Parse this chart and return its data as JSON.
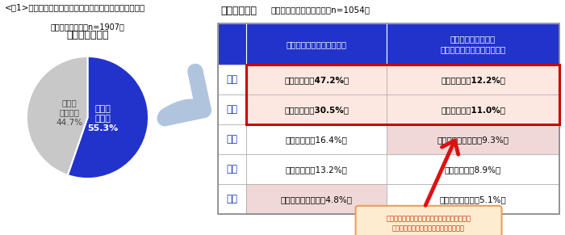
{
  "main_title": "<図1>「企業の就業者のデータ関与状況とデータの種類」",
  "pie_title": "データ関与状況",
  "pie_subtitle": "「全体ベース」（n=1907）",
  "pie_data": [
    55.3,
    44.7
  ],
  "pie_colors": [
    "#2233cc",
    "#c8c8c8"
  ],
  "label_kanyo": "データ\n関与者\n55.3%",
  "label_hikanyo": "データ\n非関与者\n44.7%",
  "table_title": "データの種類",
  "table_subtitle": "「データ関与者ベース」（n=1054）",
  "header_col1": "分析・活用しているデータ",
  "header_col2": "今はできていないが\n今後分析・活用したいデータ",
  "header_bg": "#2233cc",
  "ranks": [
    "１位",
    "２位",
    "３位",
    "４位",
    "５位"
  ],
  "col1_data": [
    "売上データ（47.2%）",
    "顧客データ（30.5%）",
    "会計データ（16.4%）",
    "勤怠データ（13.2%）",
    "アスキングデータ（4.8%）"
  ],
  "col2_data": [
    "顧客データ（12.2%）",
    "売上データ（11.0%）",
    "アスキングデータ（9.3%）",
    "会計データ（8.9%）",
    "オープンデータ（5.1%）"
  ],
  "col1_bold": [
    true,
    true,
    false,
    false,
    false
  ],
  "col2_bold": [
    true,
    true,
    false,
    false,
    false
  ],
  "row_col1_bg": [
    "#fce8e0",
    "#fce8e0",
    "#ffffff",
    "#ffffff",
    "#f0d8d8"
  ],
  "row_col2_bg": [
    "#fce8e0",
    "#fce8e0",
    "#f0d8d8",
    "#ffffff",
    "#ffffff"
  ],
  "highlight_border": "#cc0000",
  "rank_color": "#1133bb",
  "annotation_text": "アスキングデータの分析ニーズが高い一方で、\n現状ではまだ十分に活用しきれていない",
  "annotation_bg": "#fdecd0",
  "annotation_border": "#e8a060",
  "arrow_color": "#b0c4de"
}
